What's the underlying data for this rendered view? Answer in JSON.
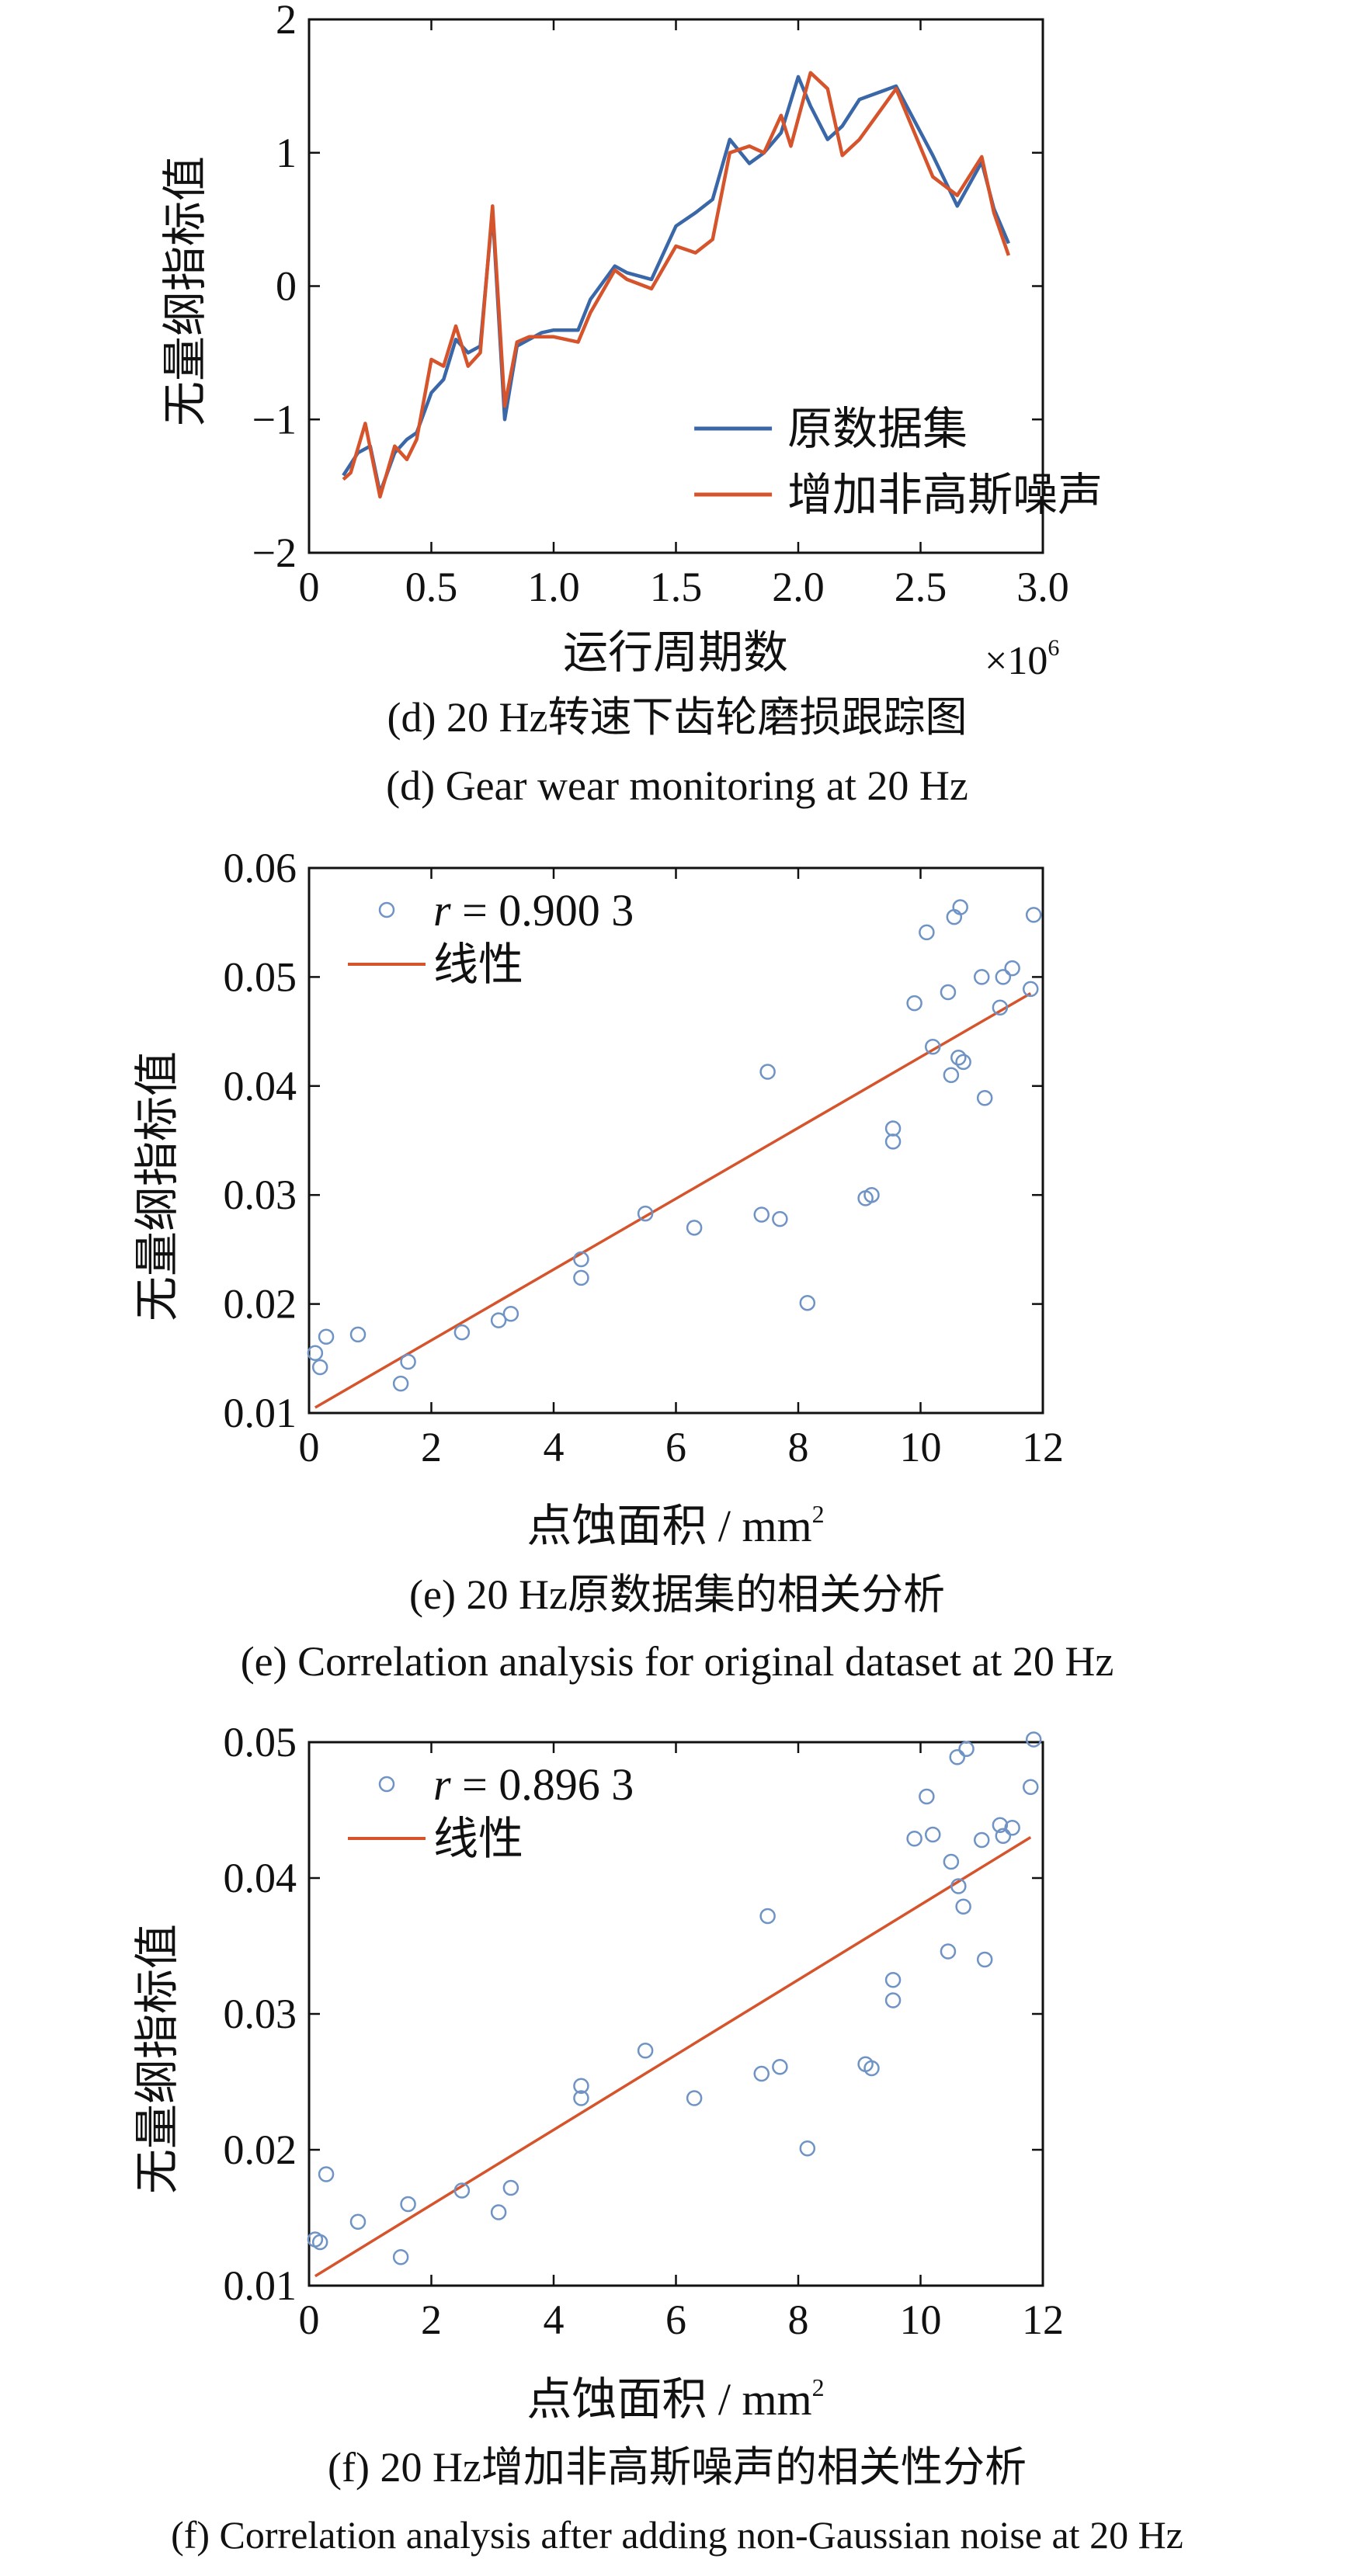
{
  "colors": {
    "series_blue": "#3a67a8",
    "series_orange": "#d6542c",
    "axis": "#111111",
    "marker": "#6e93c4"
  },
  "chart_data": [
    {
      "id": "d",
      "type": "line",
      "ylabel": "无量纲指标值",
      "xlabel": "运行周期数",
      "x_multiplier_label": "×10",
      "x_multiplier_exp": "6",
      "xlim": [
        0,
        3.0
      ],
      "ylim": [
        -2,
        2
      ],
      "xticks": [
        0,
        0.5,
        1.0,
        1.5,
        2.0,
        2.5,
        3.0
      ],
      "xtick_labels": [
        "0",
        "0.5",
        "1.0",
        "1.5",
        "2.0",
        "2.5",
        "3.0"
      ],
      "yticks": [
        -2,
        -1,
        0,
        1,
        2
      ],
      "ytick_labels": [
        "−2",
        "−1",
        "0",
        "1",
        "2"
      ],
      "legend_position": "bottom-right",
      "series": [
        {
          "name": "原数据集",
          "color": "#3a67a8",
          "x": [
            0.14,
            0.2,
            0.25,
            0.29,
            0.35,
            0.4,
            0.44,
            0.5,
            0.55,
            0.6,
            0.65,
            0.7,
            0.75,
            0.8,
            0.85,
            0.9,
            0.95,
            1.0,
            1.1,
            1.15,
            1.25,
            1.3,
            1.4,
            1.5,
            1.58,
            1.65,
            1.72,
            1.8,
            1.86,
            1.93,
            2.0,
            2.05,
            2.12,
            2.18,
            2.25,
            2.4,
            2.55,
            2.65,
            2.75,
            2.8,
            2.86
          ],
          "values": [
            -1.42,
            -1.25,
            -1.2,
            -1.55,
            -1.25,
            -1.15,
            -1.1,
            -0.8,
            -0.7,
            -0.4,
            -0.5,
            -0.45,
            0.56,
            -1.0,
            -0.45,
            -0.4,
            -0.35,
            -0.33,
            -0.33,
            -0.1,
            0.15,
            0.1,
            0.05,
            0.45,
            0.55,
            0.65,
            1.1,
            0.92,
            1.0,
            1.15,
            1.57,
            1.35,
            1.1,
            1.2,
            1.4,
            1.5,
            0.98,
            0.6,
            0.93,
            0.58,
            0.32
          ]
        },
        {
          "name": "增加非高斯噪声",
          "color": "#d6542c",
          "x": [
            0.14,
            0.17,
            0.23,
            0.29,
            0.35,
            0.4,
            0.44,
            0.5,
            0.55,
            0.6,
            0.65,
            0.7,
            0.75,
            0.8,
            0.85,
            0.9,
            0.95,
            1.0,
            1.1,
            1.15,
            1.25,
            1.3,
            1.4,
            1.5,
            1.58,
            1.65,
            1.72,
            1.8,
            1.86,
            1.93,
            1.97,
            2.05,
            2.12,
            2.18,
            2.25,
            2.4,
            2.55,
            2.65,
            2.75,
            2.8,
            2.86
          ],
          "values": [
            -1.45,
            -1.4,
            -1.03,
            -1.58,
            -1.2,
            -1.3,
            -1.15,
            -0.55,
            -0.6,
            -0.3,
            -0.6,
            -0.5,
            0.6,
            -0.9,
            -0.42,
            -0.38,
            -0.38,
            -0.38,
            -0.42,
            -0.2,
            0.12,
            0.05,
            -0.02,
            0.3,
            0.25,
            0.35,
            1.0,
            1.05,
            1.0,
            1.28,
            1.05,
            1.6,
            1.48,
            0.98,
            1.1,
            1.48,
            0.82,
            0.68,
            0.97,
            0.55,
            0.23
          ]
        }
      ],
      "caption_cn": "(d)  20 Hz转速下齿轮磨损跟踪图",
      "caption_en": "(d)  Gear wear monitoring at 20 Hz"
    },
    {
      "id": "e",
      "type": "scatter",
      "ylabel": "无量纲指标值",
      "xlabel": "点蚀面积 / mm",
      "xlabel_sup": "2",
      "xlim": [
        0,
        12
      ],
      "ylim": [
        0.01,
        0.06
      ],
      "xticks": [
        0,
        2,
        4,
        6,
        8,
        10,
        12
      ],
      "xtick_labels": [
        "0",
        "2",
        "4",
        "6",
        "8",
        "10",
        "12"
      ],
      "yticks": [
        0.01,
        0.02,
        0.03,
        0.04,
        0.05,
        0.06
      ],
      "ytick_labels": [
        "0.01",
        "0.02",
        "0.03",
        "0.04",
        "0.05",
        "0.06"
      ],
      "legend_position": "top-left",
      "r_prefix": "r",
      "r_value": " = 0.900 3",
      "fit_label": "线性",
      "fit_line": {
        "x": [
          0.1,
          11.8
        ],
        "y": [
          0.0105,
          0.0485
        ]
      },
      "points": {
        "x": [
          0.1,
          0.18,
          0.28,
          0.8,
          1.5,
          1.62,
          2.5,
          3.1,
          3.3,
          4.45,
          4.45,
          5.5,
          6.3,
          7.4,
          7.5,
          7.7,
          8.15,
          9.1,
          9.2,
          9.55,
          9.55,
          9.9,
          10.1,
          10.2,
          10.45,
          10.5,
          10.55,
          10.62,
          10.65,
          10.7,
          11.0,
          11.05,
          11.3,
          11.35,
          11.5,
          11.8,
          11.85
        ],
        "y": [
          0.0155,
          0.0142,
          0.017,
          0.0172,
          0.0127,
          0.0147,
          0.0174,
          0.0185,
          0.0191,
          0.0224,
          0.0241,
          0.0283,
          0.027,
          0.0282,
          0.0413,
          0.0278,
          0.0201,
          0.0297,
          0.03,
          0.0361,
          0.0349,
          0.0476,
          0.0541,
          0.0436,
          0.0486,
          0.041,
          0.0555,
          0.0426,
          0.0564,
          0.0422,
          0.05,
          0.0389,
          0.0472,
          0.05,
          0.0508,
          0.0489,
          0.0557
        ]
      },
      "caption_cn": "(e)  20 Hz原数据集的相关分析",
      "caption_en": "(e)  Correlation analysis for original dataset at 20 Hz"
    },
    {
      "id": "f",
      "type": "scatter",
      "ylabel": "无量纲指标值",
      "xlabel": "点蚀面积 / mm",
      "xlabel_sup": "2",
      "xlim": [
        0,
        12
      ],
      "ylim": [
        0.01,
        0.05
      ],
      "xticks": [
        0,
        2,
        4,
        6,
        8,
        10,
        12
      ],
      "xtick_labels": [
        "0",
        "2",
        "4",
        "6",
        "8",
        "10",
        "12"
      ],
      "yticks": [
        0.01,
        0.02,
        0.03,
        0.04,
        0.05
      ],
      "ytick_labels": [
        "0.01",
        "0.02",
        "0.03",
        "0.04",
        "0.05"
      ],
      "legend_position": "top-left",
      "r_prefix": "r",
      "r_value": " = 0.896 3",
      "fit_label": "线性",
      "fit_line": {
        "x": [
          0.1,
          11.8
        ],
        "y": [
          0.0107,
          0.043
        ]
      },
      "points": {
        "x": [
          0.1,
          0.18,
          0.28,
          0.8,
          1.5,
          1.62,
          2.5,
          3.1,
          3.3,
          4.45,
          4.45,
          5.5,
          6.3,
          7.4,
          7.5,
          7.7,
          8.15,
          9.1,
          9.2,
          9.55,
          9.55,
          9.9,
          10.1,
          10.2,
          10.45,
          10.5,
          10.6,
          10.62,
          10.7,
          10.75,
          11.0,
          11.05,
          11.3,
          11.35,
          11.5,
          11.8,
          11.85
        ],
        "y": [
          0.0134,
          0.0132,
          0.0182,
          0.0147,
          0.0121,
          0.016,
          0.017,
          0.0154,
          0.0172,
          0.0238,
          0.0247,
          0.0273,
          0.0238,
          0.0256,
          0.0372,
          0.0261,
          0.0201,
          0.0263,
          0.026,
          0.0325,
          0.031,
          0.0429,
          0.046,
          0.0432,
          0.0346,
          0.0412,
          0.0489,
          0.0394,
          0.0379,
          0.0495,
          0.0428,
          0.034,
          0.0439,
          0.0431,
          0.0437,
          0.0467,
          0.0502
        ]
      },
      "caption_cn": "(f)  20 Hz增加非高斯噪声的相关性分析",
      "caption_en": "(f)  Correlation analysis after adding non-Gaussian noise at 20 Hz"
    }
  ]
}
